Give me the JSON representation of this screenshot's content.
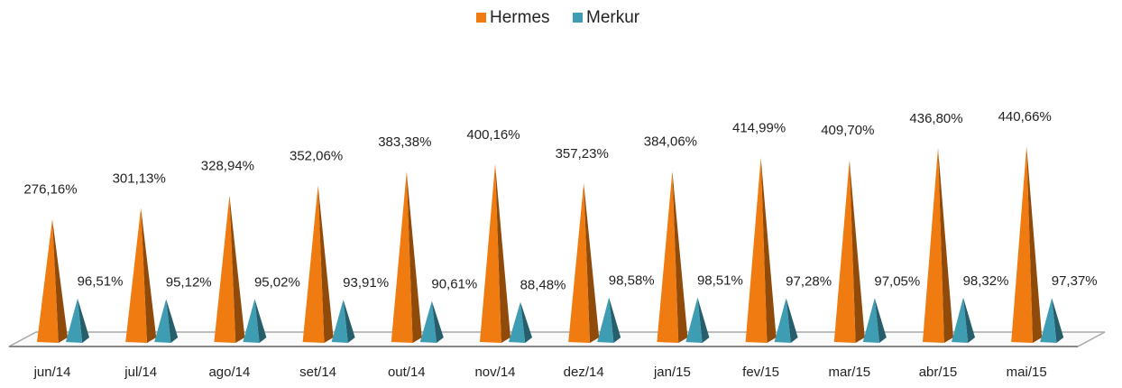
{
  "chart_data": {
    "type": "bar",
    "categories": [
      "jun/14",
      "jul/14",
      "ago/14",
      "set/14",
      "out/14",
      "nov/14",
      "dez/14",
      "jan/15",
      "fev/15",
      "mar/15",
      "abr/15",
      "mai/15"
    ],
    "series": [
      {
        "name": "Hermes",
        "color": "#f07b10",
        "values": [
          276.16,
          301.13,
          328.94,
          352.06,
          383.38,
          400.16,
          357.23,
          384.06,
          414.99,
          409.7,
          436.8,
          440.66
        ],
        "value_labels": [
          "276,16%",
          "301,13%",
          "328,94%",
          "352,06%",
          "383,38%",
          "400,16%",
          "357,23%",
          "384,06%",
          "414,99%",
          "409,70%",
          "436,80%",
          "440,66%"
        ]
      },
      {
        "name": "Merkur",
        "color": "#3f9db3",
        "values": [
          96.51,
          95.12,
          95.02,
          93.91,
          90.61,
          88.48,
          98.58,
          98.51,
          97.28,
          97.05,
          98.32,
          97.37
        ],
        "value_labels": [
          "96,51%",
          "95,12%",
          "95,02%",
          "93,91%",
          "90,61%",
          "88,48%",
          "98,58%",
          "98,51%",
          "97,28%",
          "97,05%",
          "98,32%",
          "97,37%"
        ]
      }
    ],
    "legend": "top"
  }
}
